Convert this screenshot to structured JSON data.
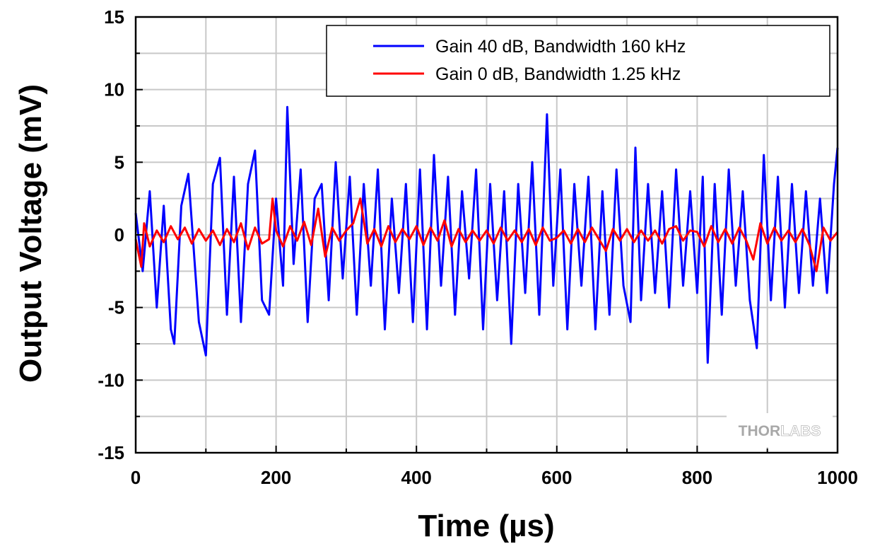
{
  "chart_data": {
    "type": "line",
    "xlabel": "Time (µs)",
    "ylabel": "Output Voltage (mV)",
    "xlim": [
      0,
      1000
    ],
    "ylim": [
      -15,
      15
    ],
    "xticks": [
      "0",
      "200",
      "400",
      "600",
      "800",
      "1000"
    ],
    "yticks": [
      "15",
      "10",
      "5",
      "0",
      "-5",
      "-10",
      "-15"
    ],
    "grid": true,
    "legend_position": "top-right",
    "series": [
      {
        "name": "Gain 40 dB, Bandwidth 160 kHz",
        "color": "#0000ff",
        "x": [
          0,
          10,
          20,
          30,
          40,
          50,
          55,
          65,
          75,
          90,
          100,
          110,
          120,
          130,
          140,
          150,
          160,
          170,
          180,
          190,
          200,
          210,
          216,
          225,
          235,
          245,
          255,
          265,
          275,
          285,
          295,
          305,
          315,
          325,
          335,
          345,
          355,
          365,
          375,
          385,
          395,
          405,
          415,
          425,
          435,
          445,
          455,
          465,
          475,
          485,
          495,
          505,
          515,
          525,
          535,
          545,
          555,
          565,
          575,
          586,
          595,
          605,
          615,
          625,
          635,
          645,
          655,
          665,
          675,
          685,
          695,
          705,
          712,
          720,
          730,
          740,
          750,
          760,
          770,
          780,
          790,
          800,
          808,
          815,
          825,
          835,
          845,
          855,
          865,
          875,
          885,
          895,
          905,
          915,
          925,
          935,
          945,
          955,
          965,
          975,
          985,
          995,
          1000
        ],
        "values": [
          1.5,
          -2.5,
          3.0,
          -5.0,
          2.0,
          -6.5,
          -7.5,
          2.0,
          4.2,
          -6.0,
          -8.3,
          3.5,
          5.3,
          -5.5,
          4.0,
          -6.0,
          3.5,
          5.8,
          -4.5,
          -5.5,
          2.5,
          -3.5,
          8.8,
          -2.0,
          4.5,
          -6.0,
          2.5,
          3.5,
          -4.5,
          5.0,
          -3.0,
          4.0,
          -5.5,
          3.5,
          -3.5,
          4.5,
          -6.5,
          2.5,
          -4.0,
          3.5,
          -6.0,
          4.5,
          -6.5,
          5.5,
          -3.5,
          4.0,
          -5.5,
          3.0,
          -3.0,
          4.5,
          -6.5,
          3.5,
          -4.5,
          3.0,
          -7.5,
          3.5,
          -4.0,
          5.0,
          -5.5,
          8.3,
          -3.5,
          4.5,
          -6.5,
          3.5,
          -3.5,
          4.0,
          -6.5,
          3.0,
          -5.5,
          4.5,
          -3.5,
          -6.0,
          6.0,
          -4.5,
          3.5,
          -4.0,
          3.0,
          -5.0,
          4.5,
          -3.5,
          3.0,
          -4.0,
          4.0,
          -8.8,
          3.5,
          -5.5,
          4.5,
          -3.5,
          3.0,
          -4.5,
          -7.8,
          5.5,
          -4.5,
          4.0,
          -5.0,
          3.5,
          -4.0,
          3.0,
          -3.5,
          2.5,
          -4.0,
          3.5,
          6.0
        ]
      },
      {
        "name": "Gain 0 dB, Bandwidth 1.25 kHz",
        "color": "#ff0000",
        "x": [
          0,
          8,
          12,
          20,
          30,
          40,
          50,
          60,
          70,
          80,
          90,
          100,
          110,
          120,
          130,
          140,
          150,
          160,
          170,
          180,
          190,
          195,
          200,
          210,
          220,
          230,
          240,
          250,
          260,
          270,
          280,
          290,
          300,
          310,
          320,
          330,
          340,
          350,
          360,
          370,
          380,
          390,
          400,
          410,
          420,
          430,
          440,
          450,
          460,
          470,
          480,
          490,
          500,
          510,
          520,
          530,
          540,
          550,
          560,
          570,
          580,
          590,
          600,
          610,
          620,
          630,
          640,
          650,
          660,
          670,
          680,
          690,
          700,
          710,
          720,
          730,
          740,
          750,
          760,
          770,
          780,
          790,
          800,
          810,
          820,
          830,
          840,
          850,
          860,
          870,
          880,
          890,
          900,
          910,
          920,
          930,
          940,
          950,
          960,
          970,
          980,
          990,
          1000
        ],
        "values": [
          -0.3,
          -2.2,
          0.8,
          -0.8,
          0.3,
          -0.5,
          0.6,
          -0.3,
          0.5,
          -0.6,
          0.4,
          -0.4,
          0.3,
          -0.7,
          0.4,
          -0.5,
          0.8,
          -1.0,
          0.5,
          -0.6,
          -0.3,
          2.5,
          0.3,
          -0.8,
          0.6,
          -0.4,
          0.9,
          -0.7,
          1.8,
          -1.5,
          0.5,
          -0.4,
          0.3,
          0.8,
          2.5,
          -0.6,
          0.4,
          -0.8,
          0.6,
          -0.5,
          0.4,
          -0.3,
          0.6,
          -0.7,
          0.5,
          -0.4,
          1.0,
          -0.8,
          0.4,
          -0.5,
          0.3,
          -0.4,
          0.3,
          -0.6,
          0.5,
          -0.4,
          0.3,
          -0.5,
          0.4,
          -0.7,
          0.5,
          -0.4,
          -0.2,
          0.3,
          -0.6,
          0.4,
          -0.5,
          0.5,
          -0.3,
          -1.1,
          0.4,
          -0.4,
          0.4,
          -0.5,
          0.3,
          -0.4,
          0.3,
          -0.6,
          0.4,
          0.6,
          -0.4,
          0.3,
          0.2,
          -0.8,
          0.6,
          -0.5,
          0.4,
          -0.6,
          0.5,
          -0.4,
          -1.7,
          0.8,
          -0.6,
          0.5,
          -0.4,
          0.3,
          -0.5,
          0.4,
          -0.7,
          -2.5,
          0.5,
          -0.4,
          0.2
        ]
      }
    ],
    "watermark": {
      "text_dark": "THOR",
      "text_light": "LABS"
    }
  }
}
